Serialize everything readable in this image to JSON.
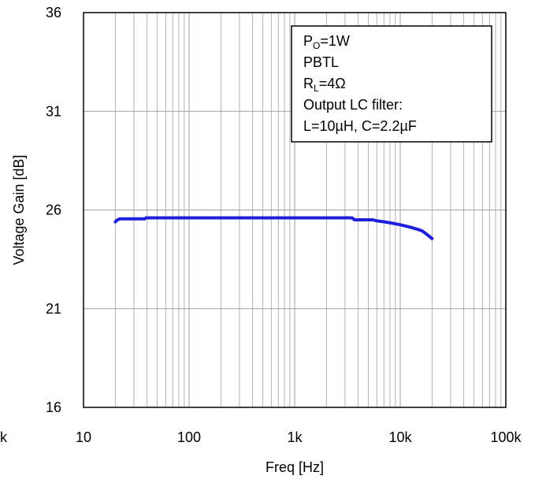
{
  "chart_data": {
    "type": "line",
    "title": "",
    "xlabel": "Freq [Hz]",
    "ylabel": "Voltage Gain [dB]",
    "x_scale": "log",
    "xlim": [
      10,
      100000
    ],
    "ylim": [
      16,
      36
    ],
    "x_ticks": [
      10,
      100,
      1000,
      10000,
      100000
    ],
    "x_tick_labels": [
      "10",
      "100",
      "1k",
      "10k",
      "100k"
    ],
    "x_edge_label": "k",
    "y_ticks": [
      16,
      21,
      26,
      31,
      36
    ],
    "y_tick_labels": [
      "16",
      "21",
      "26",
      "31",
      "36"
    ],
    "grid": true,
    "series_color": "#1f1fdc",
    "series": [
      {
        "points": [
          [
            20,
            25.4
          ],
          [
            21,
            25.5
          ],
          [
            22,
            25.55
          ],
          [
            38,
            25.55
          ],
          [
            39,
            25.6
          ],
          [
            1000,
            25.6
          ],
          [
            3500,
            25.6
          ],
          [
            3700,
            25.5
          ],
          [
            5500,
            25.5
          ],
          [
            6000,
            25.45
          ],
          [
            7000,
            25.4
          ],
          [
            8000,
            25.35
          ],
          [
            9000,
            25.3
          ],
          [
            10000,
            25.25
          ],
          [
            11000,
            25.2
          ],
          [
            12000,
            25.15
          ],
          [
            13000,
            25.1
          ],
          [
            14000,
            25.05
          ],
          [
            15000,
            25.0
          ],
          [
            16000,
            24.95
          ],
          [
            17000,
            24.85
          ],
          [
            18000,
            24.75
          ],
          [
            19000,
            24.65
          ],
          [
            20000,
            24.55
          ]
        ]
      }
    ],
    "annotation": {
      "lines": [
        {
          "main": "P",
          "sub": "O",
          "rest": "=1W"
        },
        {
          "main": "PBTL",
          "sub": "",
          "rest": ""
        },
        {
          "main": "R",
          "sub": "L",
          "rest": "=4Ω"
        },
        {
          "main": "Output LC filter:",
          "sub": "",
          "rest": ""
        },
        {
          "main": "   L=10µH,  C=2.2µF",
          "sub": "",
          "rest": ""
        }
      ]
    }
  }
}
